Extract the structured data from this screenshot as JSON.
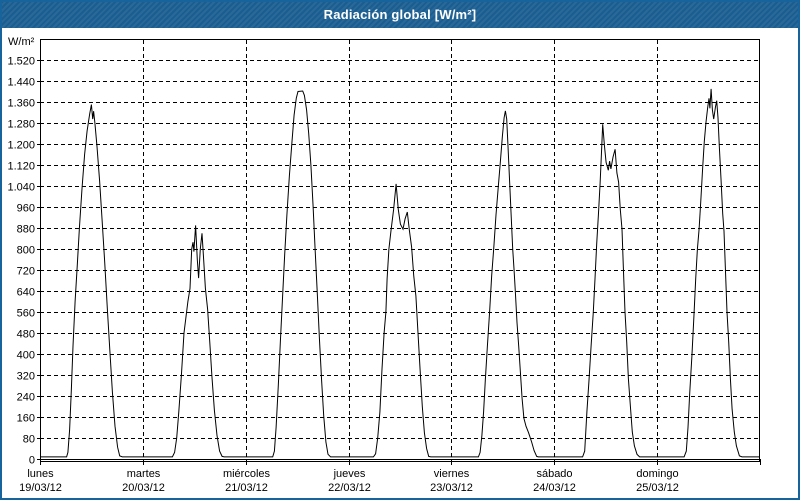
{
  "window": {
    "title": "Radiación global [W/m²]"
  },
  "colors": {
    "titlebar_bg": "#1d6195",
    "window_border": "#17639c",
    "titlebar_text": "#ffffff",
    "chart_bg": "#ffffff",
    "line": "#000000",
    "grid": "#000000"
  },
  "chart_data": {
    "type": "line",
    "title": "Radiación global [W/m²]",
    "unit_label": "W/m²",
    "ylabel": "W/m²",
    "ylim": [
      0,
      1520
    ],
    "y_tick_step": 80,
    "y_tick_labels": [
      "0",
      "80",
      "160",
      "240",
      "320",
      "400",
      "480",
      "560",
      "640",
      "720",
      "800",
      "880",
      "960",
      "1.040",
      "1.120",
      "1.200",
      "1.280",
      "1.360",
      "1.440",
      "1.520"
    ],
    "grid": "dashed, horizontal lines every 80 W/m² and vertical lines at day boundaries",
    "legend": "none",
    "x_description": "one week, 7 daily solar radiation curves, hours 0-24 per day",
    "days": [
      {
        "name": "lunes",
        "date": "19/03/12",
        "peak": 1350,
        "points": [
          [
            0,
            8
          ],
          [
            6.2,
            8
          ],
          [
            6.5,
            25
          ],
          [
            6.9,
            110
          ],
          [
            7.3,
            260
          ],
          [
            7.7,
            430
          ],
          [
            8.2,
            600
          ],
          [
            8.7,
            740
          ],
          [
            9.2,
            880
          ],
          [
            9.8,
            1030
          ],
          [
            10.4,
            1160
          ],
          [
            11.0,
            1250
          ],
          [
            11.6,
            1315
          ],
          [
            12.0,
            1350
          ],
          [
            12.3,
            1295
          ],
          [
            12.5,
            1325
          ],
          [
            12.8,
            1280
          ],
          [
            13.3,
            1190
          ],
          [
            13.9,
            1060
          ],
          [
            14.5,
            910
          ],
          [
            15.1,
            750
          ],
          [
            15.7,
            575
          ],
          [
            16.3,
            410
          ],
          [
            16.9,
            255
          ],
          [
            17.5,
            125
          ],
          [
            18.1,
            45
          ],
          [
            18.6,
            12
          ],
          [
            19.2,
            8
          ],
          [
            24,
            8
          ]
        ]
      },
      {
        "name": "martes",
        "date": "20/03/12",
        "peak": 890,
        "points": [
          [
            0,
            8
          ],
          [
            6.9,
            8
          ],
          [
            7.4,
            25
          ],
          [
            7.9,
            80
          ],
          [
            8.4,
            185
          ],
          [
            9.0,
            320
          ],
          [
            9.6,
            480
          ],
          [
            10.1,
            545
          ],
          [
            10.5,
            600
          ],
          [
            11.0,
            650
          ],
          [
            11.4,
            800
          ],
          [
            11.7,
            826
          ],
          [
            11.9,
            790
          ],
          [
            12.3,
            890
          ],
          [
            12.7,
            760
          ],
          [
            13.0,
            689
          ],
          [
            13.4,
            800
          ],
          [
            13.8,
            860
          ],
          [
            14.2,
            757
          ],
          [
            14.6,
            650
          ],
          [
            15.1,
            571
          ],
          [
            15.6,
            450
          ],
          [
            16.1,
            316
          ],
          [
            16.7,
            185
          ],
          [
            17.3,
            90
          ],
          [
            17.9,
            30
          ],
          [
            18.5,
            10
          ],
          [
            19.0,
            8
          ],
          [
            24,
            8
          ]
        ]
      },
      {
        "name": "miércoles",
        "date": "21/03/12",
        "peak": 1402,
        "points": [
          [
            0,
            8
          ],
          [
            6.3,
            8
          ],
          [
            6.7,
            30
          ],
          [
            7.1,
            120
          ],
          [
            7.6,
            280
          ],
          [
            8.1,
            450
          ],
          [
            8.6,
            620
          ],
          [
            9.1,
            780
          ],
          [
            9.6,
            930
          ],
          [
            10.2,
            1080
          ],
          [
            10.8,
            1210
          ],
          [
            11.3,
            1310
          ],
          [
            11.8,
            1375
          ],
          [
            12.2,
            1400
          ],
          [
            13.3,
            1402
          ],
          [
            13.7,
            1385
          ],
          [
            14.2,
            1330
          ],
          [
            14.7,
            1240
          ],
          [
            15.2,
            1120
          ],
          [
            15.7,
            970
          ],
          [
            16.2,
            800
          ],
          [
            16.7,
            630
          ],
          [
            17.2,
            460
          ],
          [
            17.7,
            300
          ],
          [
            18.2,
            165
          ],
          [
            18.7,
            65
          ],
          [
            19.2,
            18
          ],
          [
            19.8,
            8
          ],
          [
            24,
            8
          ]
        ]
      },
      {
        "name": "jueves",
        "date": "22/03/12",
        "peak": 1048,
        "points": [
          [
            0,
            8
          ],
          [
            5.8,
            8
          ],
          [
            6.3,
            20
          ],
          [
            6.8,
            80
          ],
          [
            7.3,
            180
          ],
          [
            7.8,
            343
          ],
          [
            8.3,
            480
          ],
          [
            8.7,
            560
          ],
          [
            9.0,
            686
          ],
          [
            9.4,
            800
          ],
          [
            9.9,
            870
          ],
          [
            10.5,
            950
          ],
          [
            11.1,
            1048
          ],
          [
            11.6,
            950
          ],
          [
            12.1,
            895
          ],
          [
            12.7,
            876
          ],
          [
            13.2,
            915
          ],
          [
            13.7,
            941
          ],
          [
            14.2,
            870
          ],
          [
            14.7,
            808
          ],
          [
            15.2,
            700
          ],
          [
            15.7,
            621
          ],
          [
            16.2,
            480
          ],
          [
            16.7,
            340
          ],
          [
            17.2,
            200
          ],
          [
            17.7,
            100
          ],
          [
            18.2,
            40
          ],
          [
            18.7,
            10
          ],
          [
            19.2,
            8
          ],
          [
            24,
            8
          ]
        ]
      },
      {
        "name": "viernes",
        "date": "23/03/12",
        "peak": 1326,
        "points": [
          [
            0,
            8
          ],
          [
            6.3,
            8
          ],
          [
            6.7,
            25
          ],
          [
            7.1,
            90
          ],
          [
            7.5,
            180
          ],
          [
            7.9,
            300
          ],
          [
            8.4,
            431
          ],
          [
            8.9,
            560
          ],
          [
            9.4,
            700
          ],
          [
            9.9,
            811
          ],
          [
            10.4,
            930
          ],
          [
            10.9,
            1029
          ],
          [
            11.4,
            1130
          ],
          [
            11.9,
            1230
          ],
          [
            12.3,
            1300
          ],
          [
            12.6,
            1326
          ],
          [
            12.9,
            1295
          ],
          [
            13.2,
            1192
          ],
          [
            13.6,
            1050
          ],
          [
            13.9,
            941
          ],
          [
            14.3,
            800
          ],
          [
            14.6,
            724
          ],
          [
            14.9,
            640
          ],
          [
            15.3,
            520
          ],
          [
            15.7,
            430
          ],
          [
            16.1,
            330
          ],
          [
            16.5,
            230
          ],
          [
            16.9,
            155
          ],
          [
            17.4,
            125
          ],
          [
            18.0,
            100
          ],
          [
            18.7,
            65
          ],
          [
            19.3,
            32
          ],
          [
            19.9,
            10
          ],
          [
            20.3,
            8
          ],
          [
            24,
            8
          ]
        ]
      },
      {
        "name": "sábado",
        "date": "24/03/12",
        "peak": 1275,
        "points": [
          [
            0,
            8
          ],
          [
            6.6,
            8
          ],
          [
            7.1,
            30
          ],
          [
            7.6,
            180
          ],
          [
            8.1,
            300
          ],
          [
            8.6,
            431
          ],
          [
            9.1,
            560
          ],
          [
            9.5,
            686
          ],
          [
            9.9,
            820
          ],
          [
            10.3,
            930
          ],
          [
            10.7,
            1050
          ],
          [
            11.0,
            1160
          ],
          [
            11.3,
            1275
          ],
          [
            11.7,
            1195
          ],
          [
            12.1,
            1130
          ],
          [
            12.6,
            1100
          ],
          [
            12.9,
            1135
          ],
          [
            13.2,
            1105
          ],
          [
            13.7,
            1150
          ],
          [
            14.2,
            1180
          ],
          [
            14.6,
            1090
          ],
          [
            15.0,
            1055
          ],
          [
            15.4,
            950
          ],
          [
            15.8,
            876
          ],
          [
            16.1,
            735
          ],
          [
            16.5,
            560
          ],
          [
            16.9,
            446
          ],
          [
            17.3,
            305
          ],
          [
            17.8,
            190
          ],
          [
            18.2,
            103
          ],
          [
            18.7,
            50
          ],
          [
            19.3,
            18
          ],
          [
            19.9,
            8
          ],
          [
            24,
            8
          ]
        ]
      },
      {
        "name": "domingo",
        "date": "25/03/12",
        "peak": 1410,
        "points": [
          [
            0,
            8
          ],
          [
            6.3,
            8
          ],
          [
            6.8,
            30
          ],
          [
            7.2,
            120
          ],
          [
            7.6,
            250
          ],
          [
            8.1,
            392
          ],
          [
            8.6,
            550
          ],
          [
            9.0,
            686
          ],
          [
            9.4,
            800
          ],
          [
            9.8,
            876
          ],
          [
            10.2,
            990
          ],
          [
            10.6,
            1105
          ],
          [
            11.0,
            1210
          ],
          [
            11.4,
            1283
          ],
          [
            11.8,
            1340
          ],
          [
            12.1,
            1374
          ],
          [
            12.3,
            1336
          ],
          [
            12.6,
            1410
          ],
          [
            12.9,
            1330
          ],
          [
            13.2,
            1295
          ],
          [
            13.6,
            1340
          ],
          [
            13.9,
            1365
          ],
          [
            14.2,
            1300
          ],
          [
            14.5,
            1192
          ],
          [
            14.9,
            1067
          ],
          [
            15.3,
            935
          ],
          [
            15.6,
            868
          ],
          [
            15.9,
            735
          ],
          [
            16.3,
            560
          ],
          [
            16.7,
            446
          ],
          [
            17.1,
            305
          ],
          [
            17.5,
            190
          ],
          [
            18.0,
            103
          ],
          [
            18.5,
            50
          ],
          [
            19.2,
            12
          ],
          [
            19.8,
            8
          ],
          [
            24,
            8
          ]
        ]
      }
    ]
  }
}
